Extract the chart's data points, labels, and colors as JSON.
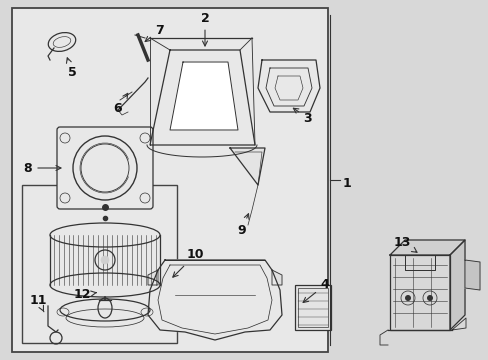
{
  "bg_color": "#d8d8d8",
  "main_box_color": "#e8e8e8",
  "inner_box_color": "#e8e8e8",
  "border_color": "#444444",
  "line_color": "#333333",
  "text_color": "#111111",
  "figsize": [
    4.89,
    3.6
  ],
  "dpi": 100
}
